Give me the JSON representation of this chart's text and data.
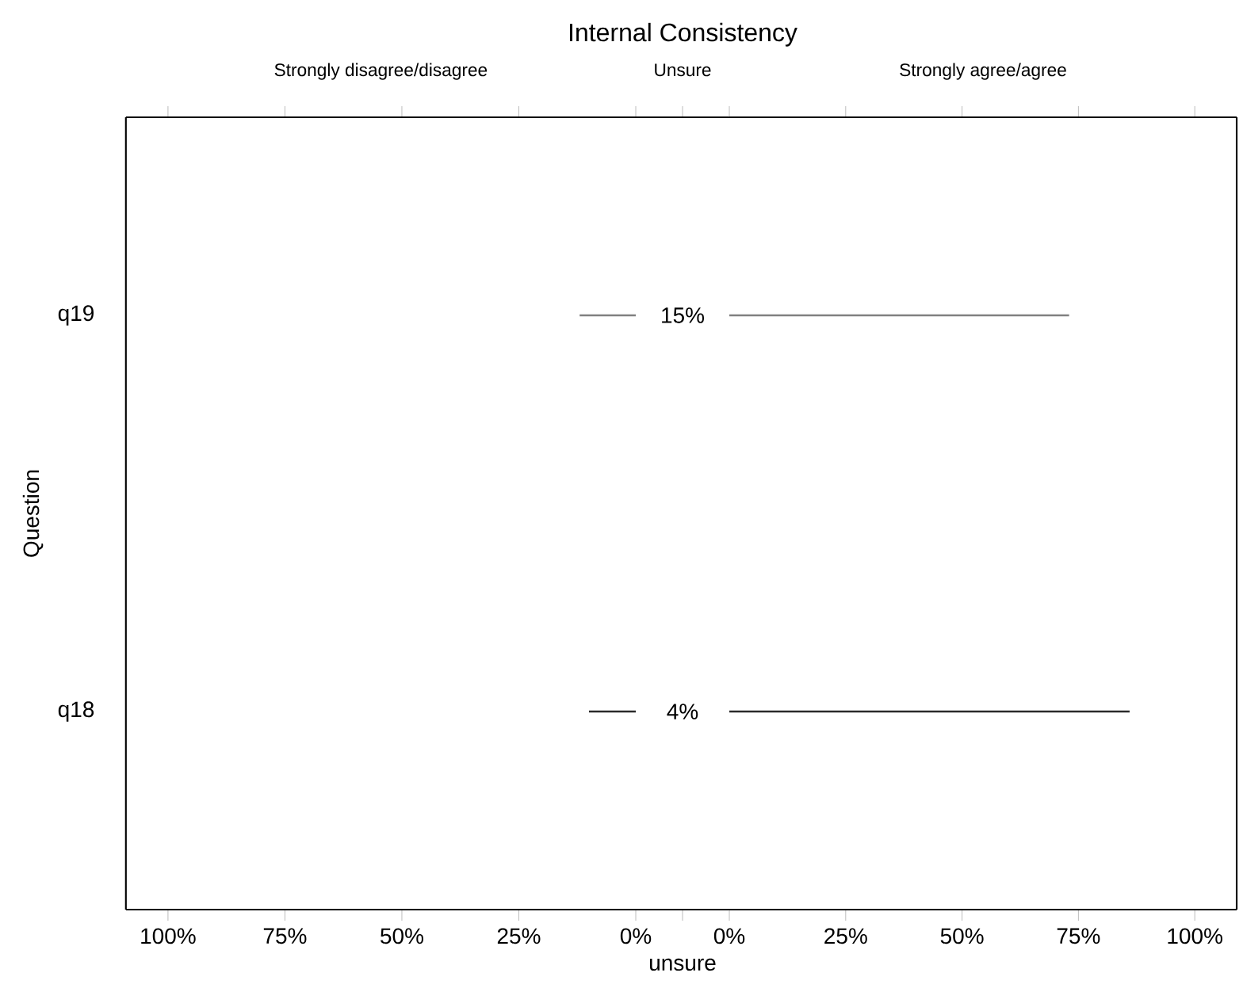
{
  "chart_data": [
    {
      "type": "bar",
      "orientation": "horizontal",
      "subtitle": "Strongly disagree/disagree",
      "ylabel": "Question",
      "categories": [
        "q19",
        "q18"
      ],
      "values": [
        12,
        10
      ],
      "colors": [
        "#808080",
        "#2b2b2b"
      ],
      "xlim": [
        109,
        0
      ],
      "xticks": [
        {
          "value": 100,
          "label": "100%"
        },
        {
          "value": 75,
          "label": "75%"
        },
        {
          "value": 50,
          "label": "50%"
        },
        {
          "value": 25,
          "label": "25%"
        },
        {
          "value": 0,
          "label": "0%"
        }
      ]
    },
    {
      "type": "other",
      "title": "Internal Consistency",
      "subtitle": "Unsure",
      "xlabel": "unsure",
      "values": [
        15,
        4
      ],
      "value_labels": [
        "15%",
        "4%"
      ]
    },
    {
      "type": "bar",
      "orientation": "horizontal",
      "subtitle": "Strongly agree/agree",
      "values": [
        73,
        86
      ],
      "colors": [
        "#808080",
        "#2b2b2b"
      ],
      "xlim": [
        0,
        109
      ],
      "tick_labels": "x",
      "xticks": [
        {
          "value": 0,
          "label": "0%"
        },
        {
          "value": 25,
          "label": "25%"
        },
        {
          "value": 50,
          "label": "50%"
        },
        {
          "value": 75,
          "label": "75%"
        },
        {
          "value": 100,
          "label": "100%"
        }
      ]
    }
  ]
}
